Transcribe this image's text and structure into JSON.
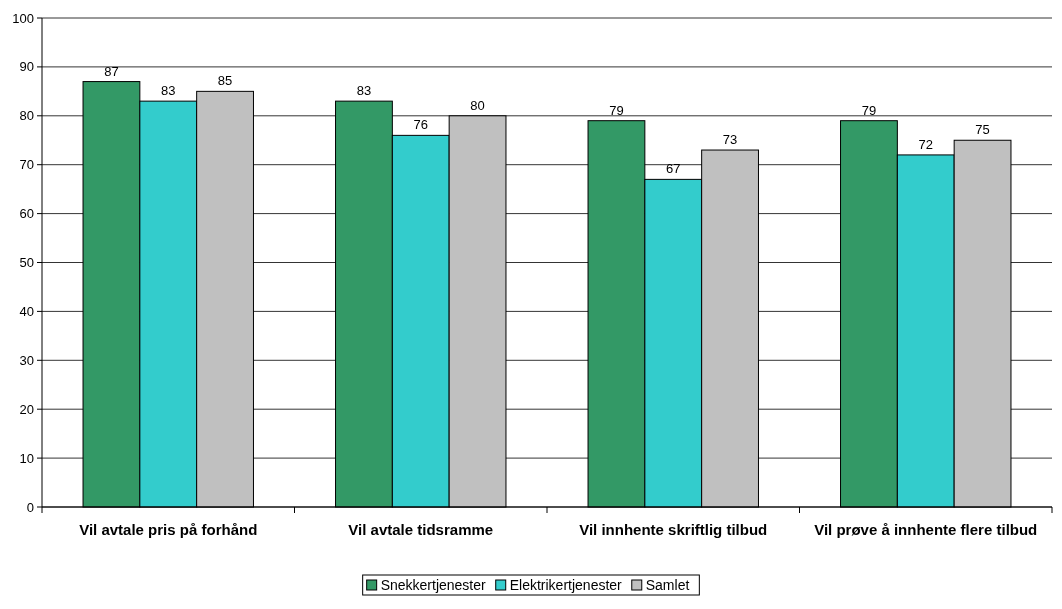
{
  "chart_data": {
    "type": "bar",
    "categories": [
      "Vil avtale pris på forhånd",
      "Vil avtale tidsramme",
      "Vil innhente skriftlig tilbud",
      "Vil prøve å innhente flere tilbud"
    ],
    "series": [
      {
        "name": "Snekkertjenester",
        "color": "#339966",
        "values": [
          87,
          83,
          79,
          79
        ]
      },
      {
        "name": "Elektrikertjenester",
        "color": "#33cccc",
        "values": [
          83,
          76,
          67,
          72
        ]
      },
      {
        "name": "Samlet",
        "color": "#c0c0c0",
        "values": [
          85,
          80,
          73,
          75
        ]
      }
    ],
    "ylim": [
      0,
      100
    ],
    "yticks": [
      0,
      10,
      20,
      30,
      40,
      50,
      60,
      70,
      80,
      90,
      100
    ],
    "grid": "y",
    "data_labels": true,
    "legend": "bottom"
  }
}
